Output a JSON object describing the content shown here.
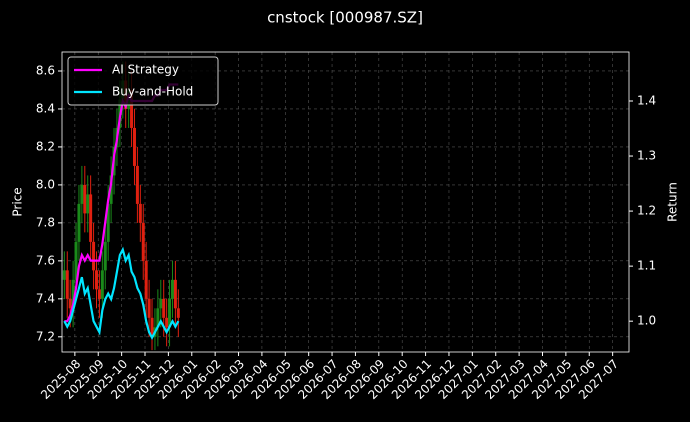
{
  "chart_data": {
    "type": "candlestick",
    "title": "cnstock [000987.SZ]",
    "ylabel": "Price",
    "y2label": "Return",
    "ylim": [
      7.12,
      8.7
    ],
    "yticks": [
      7.2,
      7.4,
      7.6,
      7.8,
      {
        "value": 8,
        "label": "8.0"
      },
      8.2,
      8.4,
      8.6
    ],
    "y2lim": [
      0.944,
      1.489
    ],
    "y2ticks": [
      {
        "value": 1,
        "label": "1.0"
      },
      1.1,
      1.2,
      1.3,
      1.4
    ],
    "xlim": [
      -0.55,
      23.7
    ],
    "xticks": [
      {
        "value": 0,
        "label": "2025-08"
      },
      {
        "value": 1,
        "label": "2025-09"
      },
      {
        "value": 2,
        "label": "2025-10"
      },
      {
        "value": 3,
        "label": "2025-11"
      },
      {
        "value": 4,
        "label": "2025-12"
      },
      {
        "value": 5,
        "label": "2026-01"
      },
      {
        "value": 6,
        "label": "2026-02"
      },
      {
        "value": 7,
        "label": "2026-03"
      },
      {
        "value": 8,
        "label": "2026-04"
      },
      {
        "value": 9,
        "label": "2026-05"
      },
      {
        "value": 10,
        "label": "2026-06"
      },
      {
        "value": 11,
        "label": "2026-07"
      },
      {
        "value": 12,
        "label": "2026-08"
      },
      {
        "value": 13,
        "label": "2026-09"
      },
      {
        "value": 14,
        "label": "2026-10"
      },
      {
        "value": 15,
        "label": "2026-11"
      },
      {
        "value": 16,
        "label": "2026-12"
      },
      {
        "value": 17,
        "label": "2027-01"
      },
      {
        "value": 18,
        "label": "2027-02"
      },
      {
        "value": 19,
        "label": "2027-03"
      },
      {
        "value": 20,
        "label": "2027-04"
      },
      {
        "value": 21,
        "label": "2027-05"
      },
      {
        "value": 22,
        "label": "2027-06"
      },
      {
        "value": 23,
        "label": "2027-07"
      }
    ],
    "grid": true,
    "legend": "upper left",
    "up_color": "#1a8a1a",
    "down_color": "#e02010",
    "x": [
      -0.45,
      -0.325,
      -0.2,
      -0.075,
      0.05,
      0.175,
      0.3,
      0.425,
      0.55,
      0.675,
      0.8,
      0.925,
      1.05,
      1.175,
      1.3,
      1.425,
      1.55,
      1.675,
      1.8,
      1.925,
      2.05,
      2.175,
      2.3,
      2.425,
      2.55,
      2.675,
      2.8,
      2.925,
      3.05,
      3.175,
      3.3,
      3.425,
      3.55,
      3.675,
      3.8,
      3.925,
      4.05,
      4.175,
      4.3,
      4.425
    ],
    "open": [
      7.5,
      7.55,
      7.4,
      7.35,
      7.5,
      7.7,
      7.9,
      8.0,
      7.85,
      7.95,
      7.7,
      7.55,
      7.45,
      7.4,
      7.55,
      7.7,
      7.9,
      8.05,
      8.2,
      8.3,
      8.45,
      8.55,
      8.4,
      8.5,
      8.3,
      8.1,
      7.9,
      7.8,
      7.6,
      7.4,
      7.3,
      7.2,
      7.25,
      7.35,
      7.4,
      7.3,
      7.25,
      7.4,
      7.5,
      7.35
    ],
    "close": [
      7.55,
      7.4,
      7.35,
      7.5,
      7.7,
      7.9,
      8.0,
      7.85,
      7.95,
      7.7,
      7.55,
      7.45,
      7.4,
      7.55,
      7.7,
      7.9,
      8.05,
      8.2,
      8.3,
      8.45,
      8.55,
      8.4,
      8.5,
      8.3,
      8.1,
      7.9,
      7.8,
      7.6,
      7.4,
      7.3,
      7.2,
      7.25,
      7.35,
      7.4,
      7.3,
      7.25,
      7.4,
      7.5,
      7.35,
      7.3
    ],
    "high": [
      7.65,
      7.65,
      7.5,
      7.6,
      7.8,
      8.0,
      8.1,
      8.1,
      8.05,
      8.05,
      7.8,
      7.65,
      7.55,
      7.65,
      7.8,
      8.0,
      8.15,
      8.3,
      8.4,
      8.55,
      8.65,
      8.65,
      8.6,
      8.6,
      8.4,
      8.2,
      8.0,
      7.9,
      7.7,
      7.5,
      7.4,
      7.35,
      7.45,
      7.5,
      7.5,
      7.4,
      7.5,
      7.6,
      7.6,
      7.45
    ],
    "low": [
      7.4,
      7.3,
      7.25,
      7.25,
      7.4,
      7.6,
      7.8,
      7.75,
      7.75,
      7.6,
      7.45,
      7.35,
      7.3,
      7.3,
      7.45,
      7.6,
      7.8,
      7.95,
      8.1,
      8.2,
      8.35,
      8.3,
      8.3,
      8.2,
      8.0,
      7.8,
      7.7,
      7.5,
      7.3,
      7.2,
      7.13,
      7.13,
      7.15,
      7.25,
      7.2,
      7.15,
      7.15,
      7.3,
      7.25,
      7.2
    ],
    "series": [
      {
        "name": "AI Strategy",
        "color": "#ff00ff",
        "axis": "y2",
        "values": [
          1.0,
          1.0,
          1.01,
          1.03,
          1.06,
          1.1,
          1.12,
          1.11,
          1.12,
          1.11,
          1.11,
          1.11,
          1.11,
          1.14,
          1.18,
          1.22,
          1.25,
          1.3,
          1.33,
          1.37,
          1.4,
          1.39,
          1.41,
          1.4,
          1.4,
          1.4,
          1.4,
          1.4,
          1.4,
          1.4,
          1.4,
          1.41,
          1.41,
          1.42,
          1.42,
          1.42,
          1.43,
          1.43,
          1.43,
          1.43
        ]
      },
      {
        "name": "Buy-and-Hold",
        "color": "#00e5ff",
        "axis": "y2",
        "values": [
          1.0,
          0.99,
          1.0,
          1.02,
          1.04,
          1.06,
          1.08,
          1.05,
          1.06,
          1.03,
          1.0,
          0.99,
          0.98,
          1.02,
          1.04,
          1.05,
          1.04,
          1.06,
          1.09,
          1.12,
          1.13,
          1.11,
          1.12,
          1.09,
          1.08,
          1.06,
          1.05,
          1.03,
          1.0,
          0.98,
          0.97,
          0.98,
          0.99,
          1.0,
          0.99,
          0.98,
          0.99,
          1.0,
          0.99,
          1.0
        ]
      }
    ]
  }
}
